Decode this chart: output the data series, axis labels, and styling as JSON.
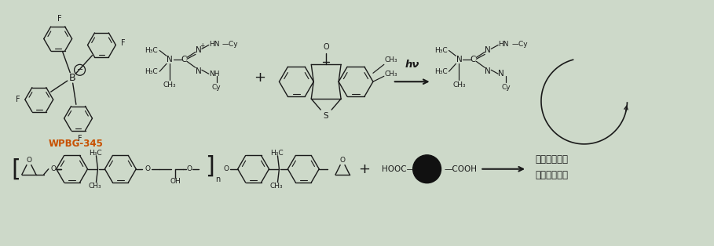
{
  "bg_color": "#cdd9c9",
  "line_color": "#1a1a1a",
  "wpbg_color": "#c85000",
  "figsize": [
    9.09,
    3.14
  ],
  "dpi": 100,
  "wpbg_label": "WPBG-345",
  "hv_label": "hν",
  "product_line1": "架橋ポリマー",
  "product_line2": "ネットワーク"
}
